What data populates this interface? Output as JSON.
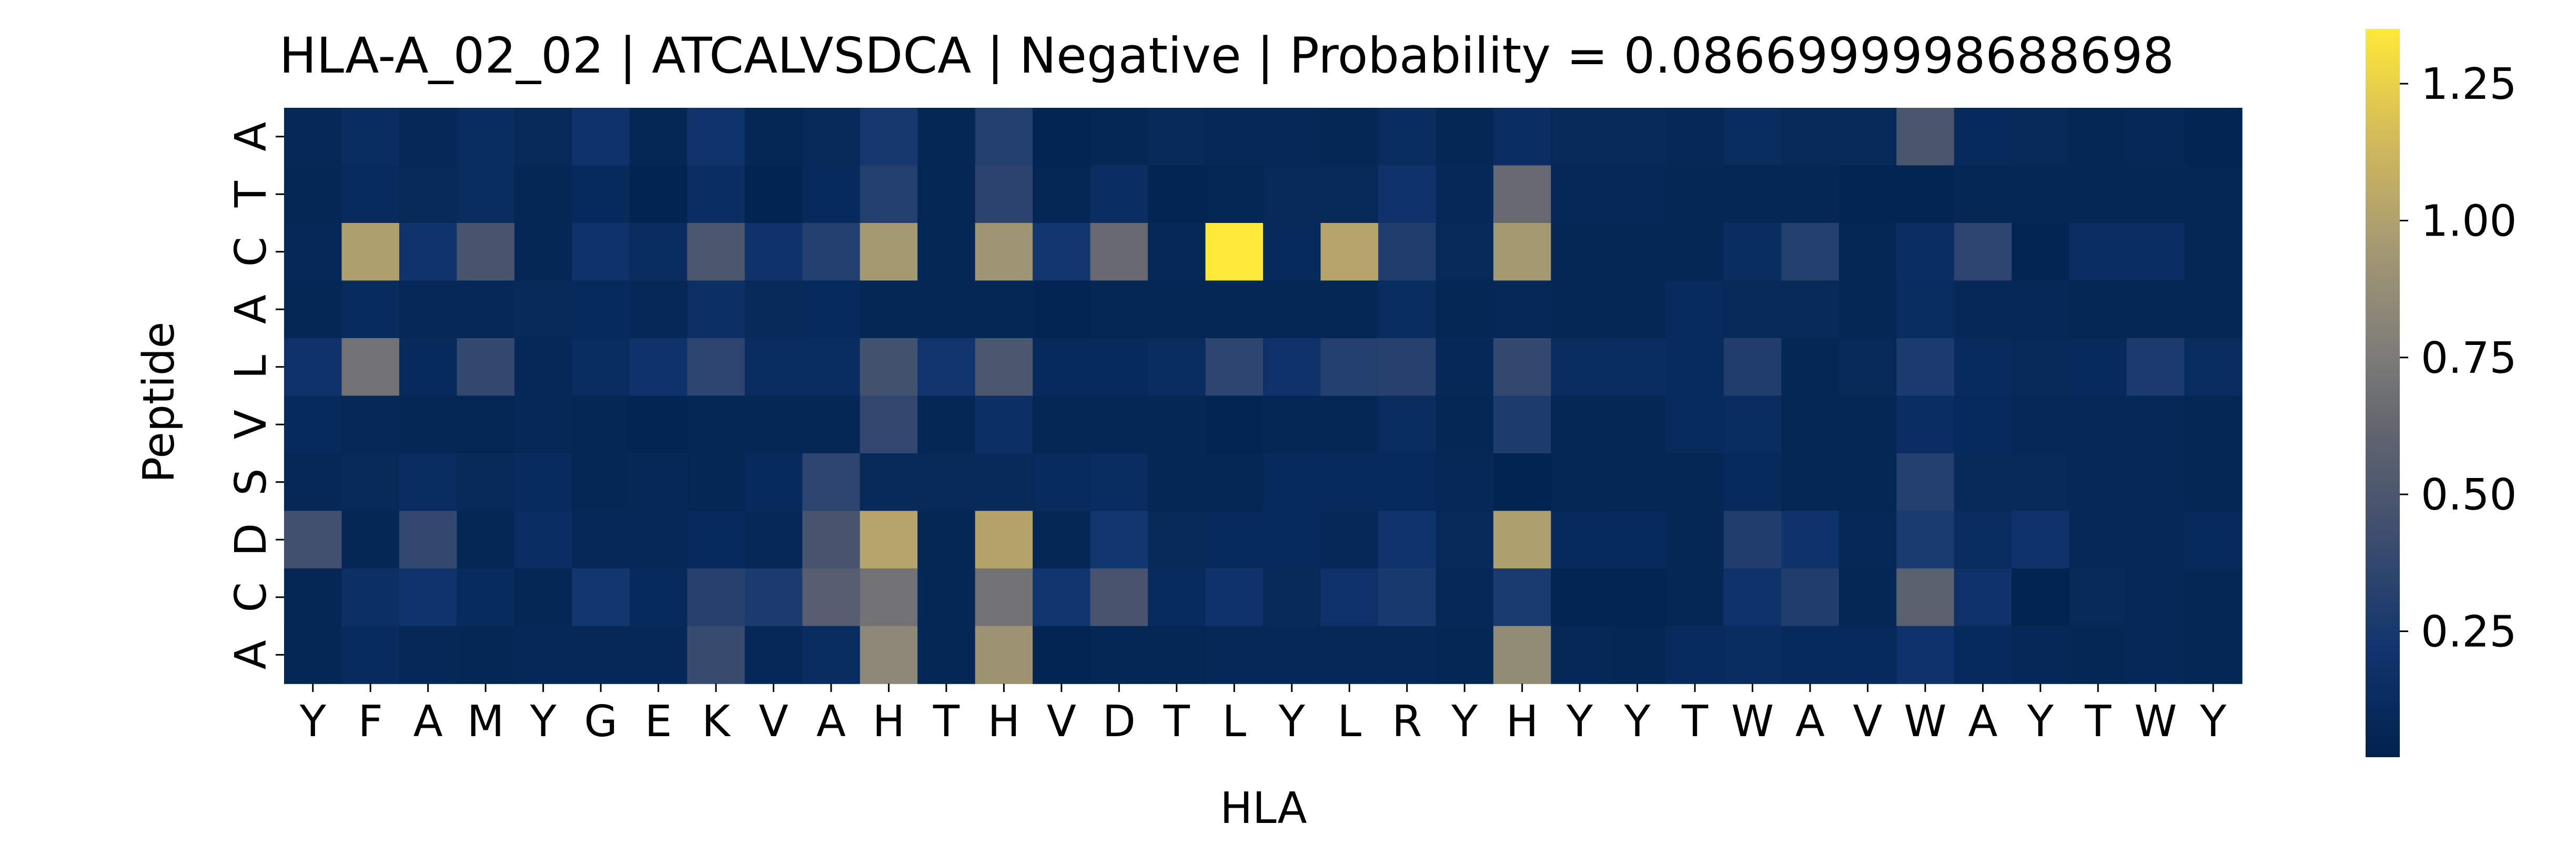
{
  "chart_data": {
    "type": "heatmap",
    "title": "HLA-A_02_02 | ATCALVSDCA | Negative | Probability = 0.0866999998688698",
    "xlabel": "HLA",
    "ylabel": "Peptide",
    "x_labels": [
      "Y",
      "F",
      "A",
      "M",
      "Y",
      "G",
      "E",
      "K",
      "V",
      "A",
      "H",
      "T",
      "H",
      "V",
      "D",
      "T",
      "L",
      "Y",
      "L",
      "R",
      "Y",
      "H",
      "Y",
      "Y",
      "T",
      "W",
      "A",
      "V",
      "W",
      "A",
      "Y",
      "T",
      "W",
      "Y"
    ],
    "y_labels": [
      "A",
      "T",
      "C",
      "A",
      "L",
      "V",
      "S",
      "D",
      "C",
      "A"
    ],
    "colorbar": {
      "ticks": [
        0.25,
        0.5,
        0.75,
        1.0,
        1.25
      ],
      "tick_labels": [
        "0.25",
        "0.50",
        "0.75",
        "1.00",
        "1.25"
      ],
      "vmin": 0.02,
      "vmax": 1.35,
      "colormap": "cividis"
    },
    "values": [
      [
        0.08,
        0.14,
        0.08,
        0.13,
        0.09,
        0.2,
        0.07,
        0.21,
        0.06,
        0.09,
        0.24,
        0.07,
        0.3,
        0.05,
        0.07,
        0.09,
        0.08,
        0.08,
        0.07,
        0.12,
        0.07,
        0.15,
        0.09,
        0.09,
        0.08,
        0.12,
        0.09,
        0.09,
        0.49,
        0.1,
        0.09,
        0.07,
        0.08,
        0.05
      ],
      [
        0.07,
        0.11,
        0.09,
        0.12,
        0.07,
        0.1,
        0.04,
        0.15,
        0.04,
        0.1,
        0.3,
        0.06,
        0.34,
        0.06,
        0.15,
        0.05,
        0.06,
        0.09,
        0.09,
        0.19,
        0.08,
        0.64,
        0.08,
        0.08,
        0.07,
        0.06,
        0.07,
        0.05,
        0.05,
        0.07,
        0.07,
        0.07,
        0.07,
        0.06
      ],
      [
        0.08,
        0.99,
        0.21,
        0.48,
        0.07,
        0.2,
        0.13,
        0.5,
        0.19,
        0.3,
        0.95,
        0.07,
        0.92,
        0.23,
        0.64,
        0.08,
        1.35,
        0.1,
        1.02,
        0.29,
        0.09,
        0.95,
        0.07,
        0.07,
        0.07,
        0.14,
        0.31,
        0.07,
        0.15,
        0.35,
        0.05,
        0.15,
        0.15,
        0.07
      ],
      [
        0.07,
        0.11,
        0.08,
        0.08,
        0.09,
        0.1,
        0.08,
        0.16,
        0.09,
        0.1,
        0.07,
        0.07,
        0.07,
        0.05,
        0.06,
        0.06,
        0.07,
        0.06,
        0.07,
        0.12,
        0.06,
        0.08,
        0.07,
        0.07,
        0.11,
        0.09,
        0.09,
        0.07,
        0.13,
        0.08,
        0.08,
        0.06,
        0.06,
        0.06
      ],
      [
        0.18,
        0.7,
        0.1,
        0.38,
        0.08,
        0.12,
        0.2,
        0.35,
        0.14,
        0.14,
        0.45,
        0.22,
        0.5,
        0.1,
        0.1,
        0.12,
        0.35,
        0.18,
        0.3,
        0.32,
        0.08,
        0.38,
        0.12,
        0.13,
        0.11,
        0.29,
        0.07,
        0.09,
        0.27,
        0.11,
        0.09,
        0.1,
        0.27,
        0.12
      ],
      [
        0.1,
        0.08,
        0.07,
        0.06,
        0.08,
        0.06,
        0.05,
        0.07,
        0.07,
        0.07,
        0.37,
        0.07,
        0.17,
        0.06,
        0.06,
        0.07,
        0.05,
        0.07,
        0.07,
        0.12,
        0.07,
        0.28,
        0.07,
        0.07,
        0.11,
        0.12,
        0.06,
        0.06,
        0.15,
        0.1,
        0.08,
        0.08,
        0.08,
        0.06
      ],
      [
        0.08,
        0.09,
        0.13,
        0.09,
        0.11,
        0.07,
        0.08,
        0.06,
        0.1,
        0.35,
        0.09,
        0.09,
        0.09,
        0.11,
        0.13,
        0.07,
        0.07,
        0.1,
        0.1,
        0.1,
        0.08,
        0.04,
        0.07,
        0.06,
        0.07,
        0.1,
        0.07,
        0.06,
        0.3,
        0.09,
        0.09,
        0.08,
        0.08,
        0.07
      ],
      [
        0.44,
        0.07,
        0.38,
        0.07,
        0.15,
        0.08,
        0.08,
        0.1,
        0.08,
        0.48,
        1.02,
        0.07,
        1.01,
        0.07,
        0.23,
        0.09,
        0.1,
        0.1,
        0.08,
        0.21,
        0.09,
        0.99,
        0.1,
        0.1,
        0.07,
        0.29,
        0.2,
        0.08,
        0.26,
        0.12,
        0.18,
        0.08,
        0.08,
        0.1
      ],
      [
        0.07,
        0.17,
        0.21,
        0.11,
        0.07,
        0.23,
        0.1,
        0.32,
        0.27,
        0.55,
        0.7,
        0.07,
        0.7,
        0.22,
        0.48,
        0.11,
        0.19,
        0.09,
        0.18,
        0.25,
        0.08,
        0.26,
        0.05,
        0.05,
        0.07,
        0.19,
        0.29,
        0.07,
        0.58,
        0.18,
        0.04,
        0.09,
        0.08,
        0.07
      ],
      [
        0.06,
        0.11,
        0.08,
        0.07,
        0.08,
        0.08,
        0.08,
        0.4,
        0.08,
        0.13,
        0.83,
        0.07,
        0.91,
        0.05,
        0.06,
        0.06,
        0.08,
        0.08,
        0.08,
        0.08,
        0.07,
        0.86,
        0.08,
        0.07,
        0.11,
        0.12,
        0.1,
        0.1,
        0.18,
        0.1,
        0.08,
        0.07,
        0.08,
        0.07
      ]
    ]
  }
}
